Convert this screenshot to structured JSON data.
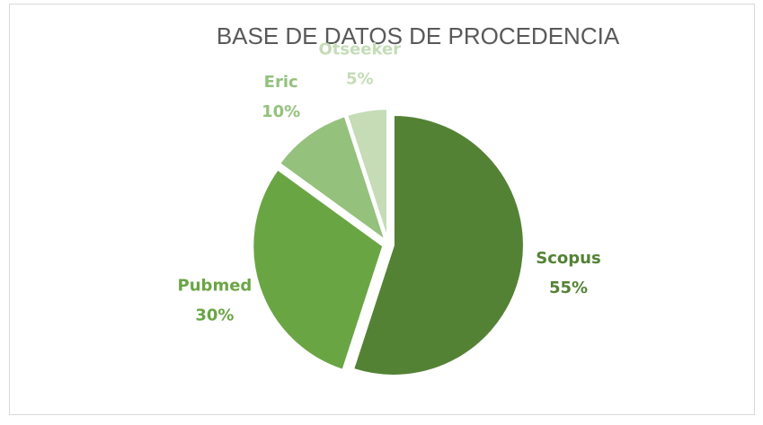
{
  "chart_data": {
    "type": "pie",
    "title": "BASE DE DATOS DE PROCEDENCIA",
    "categories": [
      "Scopus",
      "Pubmed",
      "Eric",
      "Otseeker"
    ],
    "values": [
      55,
      30,
      10,
      5
    ],
    "value_labels": [
      "55%",
      "30%",
      "10%",
      "5%"
    ],
    "colors": [
      "#548235",
      "#6aa544",
      "#94c17c",
      "#c5dcb7"
    ]
  }
}
